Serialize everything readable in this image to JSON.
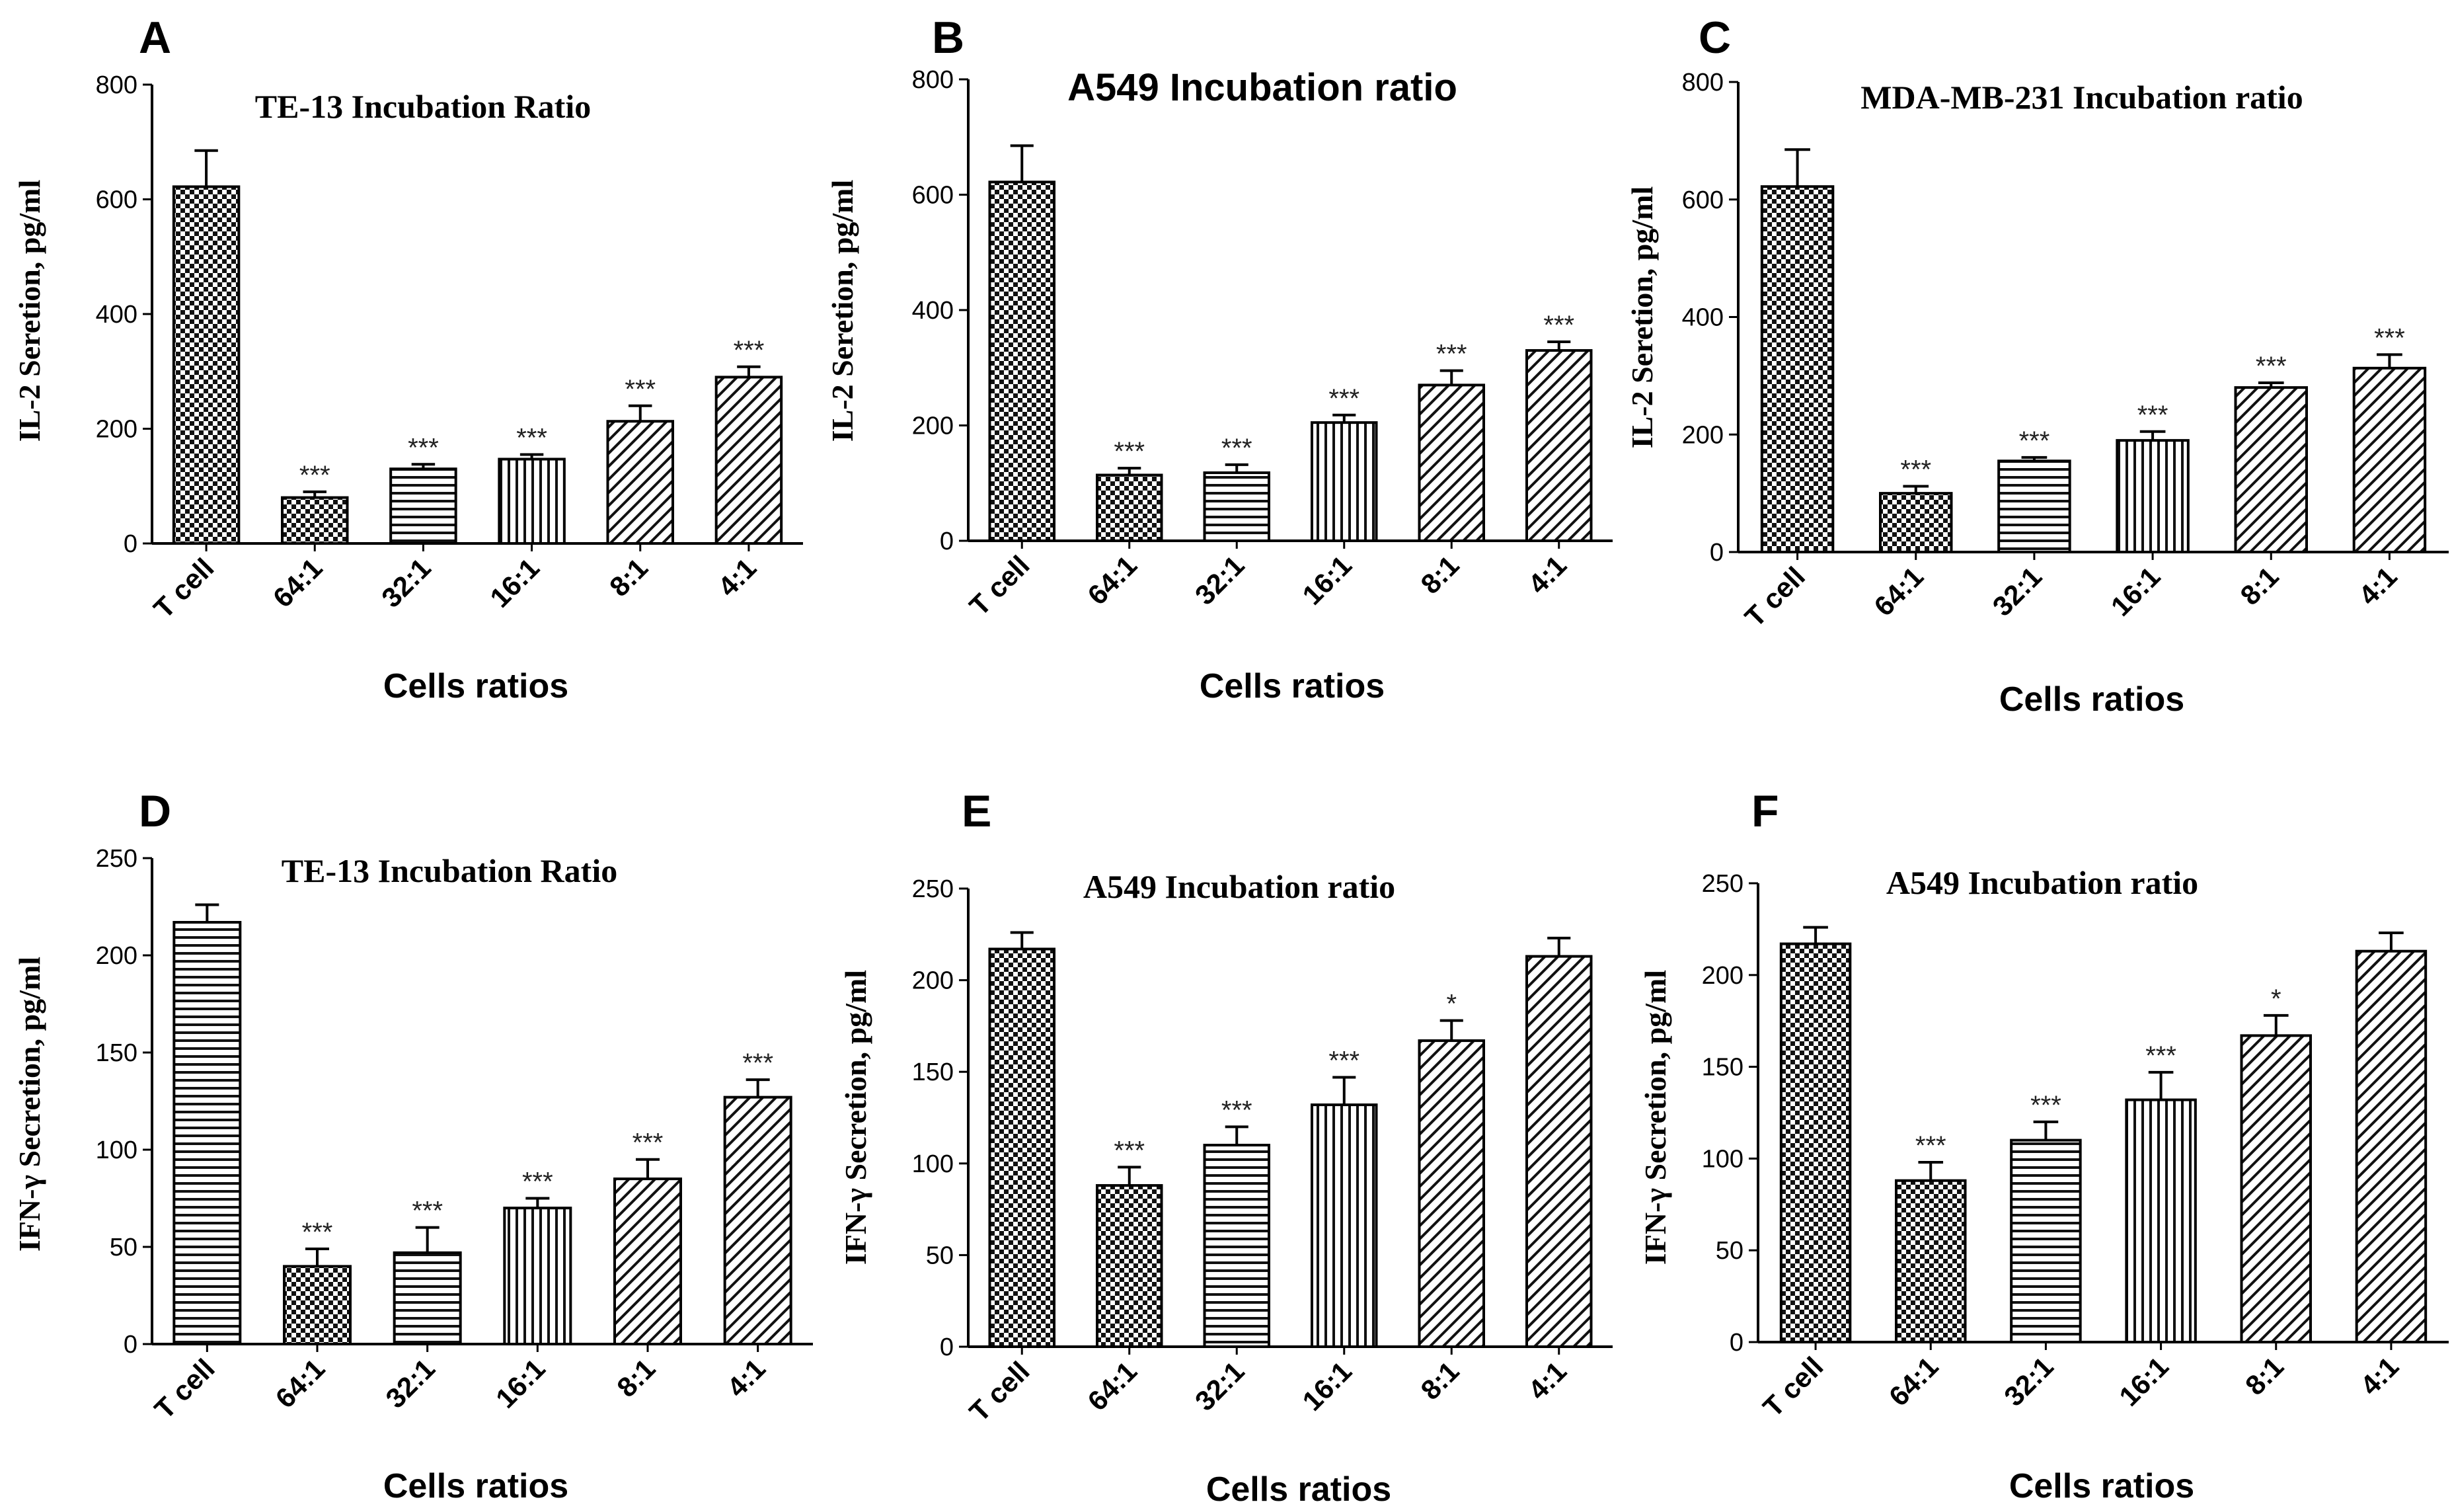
{
  "chart_data": [
    {
      "panel": "A",
      "type": "bar",
      "title": "TE-13 Incubation Ratio",
      "ylabel": "IL-2 Seretion, pg/ml",
      "xlabel": "Cells ratios",
      "categories": [
        "T cell",
        "64:1",
        "32:1",
        "16:1",
        "8:1",
        "4:1"
      ],
      "values": [
        622,
        80,
        130,
        147,
        213,
        290
      ],
      "errors": [
        63,
        10,
        8,
        8,
        27,
        18
      ],
      "significance": [
        "",
        "***",
        "***",
        "***",
        "***",
        "***"
      ],
      "patterns": [
        "checker",
        "checker",
        "hlines",
        "vlines",
        "diag",
        "diag"
      ],
      "ylim": [
        0,
        800
      ],
      "yticks": [
        0,
        200,
        400,
        600,
        800
      ]
    },
    {
      "panel": "B",
      "type": "bar",
      "title": "A549 Incubation ratio",
      "ylabel": "IL-2 Seretion, pg/ml",
      "xlabel": "Cells ratios",
      "categories": [
        "T cell",
        "64:1",
        "32:1",
        "16:1",
        "8:1",
        "4:1"
      ],
      "values": [
        622,
        114,
        118,
        205,
        270,
        330
      ],
      "errors": [
        63,
        12,
        14,
        13,
        25,
        15
      ],
      "significance": [
        "",
        "***",
        "***",
        "***",
        "***",
        "***"
      ],
      "patterns": [
        "checker",
        "checker",
        "hlines",
        "vlines",
        "diag",
        "diag"
      ],
      "ylim": [
        0,
        800
      ],
      "yticks": [
        0,
        200,
        400,
        600,
        800
      ]
    },
    {
      "panel": "C",
      "type": "bar",
      "title": "MDA-MB-231 Incubation ratio",
      "ylabel": "IL-2 Seretion, pg/ml",
      "xlabel": "Cells ratios",
      "categories": [
        "T cell",
        "64:1",
        "32:1",
        "16:1",
        "8:1",
        "4:1"
      ],
      "values": [
        622,
        100,
        155,
        190,
        280,
        313
      ],
      "errors": [
        63,
        12,
        6,
        15,
        8,
        23
      ],
      "significance": [
        "",
        "***",
        "***",
        "***",
        "***",
        "***"
      ],
      "patterns": [
        "checker",
        "checker",
        "hlines",
        "vlines",
        "diag",
        "diag"
      ],
      "ylim": [
        0,
        800
      ],
      "yticks": [
        0,
        200,
        400,
        600,
        800
      ]
    },
    {
      "panel": "D",
      "type": "bar",
      "title": "TE-13 Incubation Ratio",
      "ylabel": "IFN-γ Secretion, pg/ml",
      "xlabel": "Cells ratios",
      "categories": [
        "T cell",
        "64:1",
        "32:1",
        "16:1",
        "8:1",
        "4:1"
      ],
      "values": [
        217,
        40,
        47,
        70,
        85,
        127
      ],
      "errors": [
        9,
        9,
        13,
        5,
        10,
        9
      ],
      "significance": [
        "",
        "***",
        "***",
        "***",
        "***",
        "***"
      ],
      "patterns": [
        "hlines",
        "checker",
        "hlines",
        "vlines",
        "diag",
        "diag"
      ],
      "ylim": [
        0,
        250
      ],
      "yticks": [
        0,
        50,
        100,
        150,
        200,
        250
      ]
    },
    {
      "panel": "E",
      "type": "bar",
      "title": "A549 Incubation ratio",
      "ylabel": "IFN-γ Secretion, pg/ml",
      "xlabel": "Cells ratios",
      "categories": [
        "T cell",
        "64:1",
        "32:1",
        "16:1",
        "8:1",
        "4:1"
      ],
      "values": [
        217,
        88,
        110,
        132,
        167,
        213
      ],
      "errors": [
        9,
        10,
        10,
        15,
        11,
        10
      ],
      "significance": [
        "",
        "***",
        "***",
        "***",
        "*",
        ""
      ],
      "patterns": [
        "checker",
        "checker",
        "hlines",
        "vlines",
        "diag",
        "diag"
      ],
      "ylim": [
        0,
        250
      ],
      "yticks": [
        0,
        50,
        100,
        150,
        200,
        250
      ]
    },
    {
      "panel": "F",
      "type": "bar",
      "title": "A549 Incubation ratio",
      "ylabel": "IFN-γ Secretion, pg/ml",
      "xlabel": "Cells ratios",
      "categories": [
        "T cell",
        "64:1",
        "32:1",
        "16:1",
        "8:1",
        "4:1"
      ],
      "values": [
        217,
        88,
        110,
        132,
        167,
        213
      ],
      "errors": [
        9,
        10,
        10,
        15,
        11,
        10
      ],
      "significance": [
        "",
        "***",
        "***",
        "***",
        "*",
        ""
      ],
      "patterns": [
        "checker",
        "checker",
        "hlines",
        "vlines",
        "diag",
        "diag"
      ],
      "ylim": [
        0,
        250
      ],
      "yticks": [
        0,
        50,
        100,
        150,
        200,
        250
      ]
    }
  ]
}
